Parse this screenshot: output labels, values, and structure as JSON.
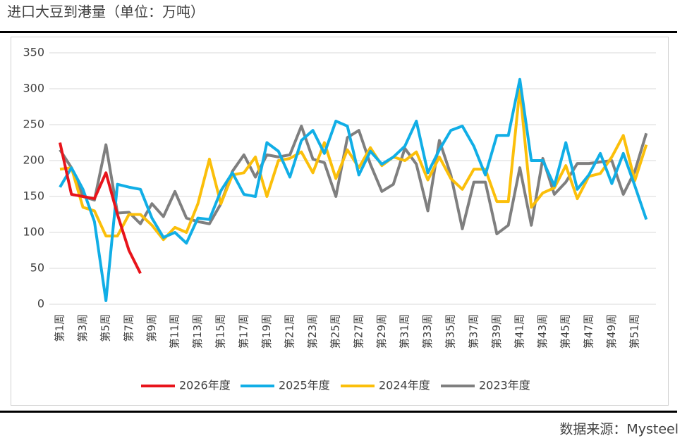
{
  "chart_data": {
    "type": "line",
    "title": "进口大豆到港量（单位：万吨）",
    "source": "数据来源：Mysteel",
    "categories": [
      "第1周",
      null,
      "第3周",
      null,
      "第5周",
      null,
      "第7周",
      null,
      "第9周",
      null,
      "第11周",
      null,
      "第13周",
      null,
      "第15周",
      null,
      "第17周",
      null,
      "第19周",
      null,
      "第21周",
      null,
      "第23周",
      null,
      "第25周",
      null,
      "第27周",
      null,
      "第29周",
      null,
      "第31周",
      null,
      "第33周",
      null,
      "第35周",
      null,
      "第37周",
      null,
      "第39周",
      null,
      "第41周",
      null,
      "第43周",
      null,
      "第45周",
      null,
      "第47周",
      null,
      "第49周",
      null,
      "第51周",
      null
    ],
    "ylim": [
      0,
      350
    ],
    "yticks": [
      0,
      50,
      100,
      150,
      200,
      250,
      300,
      350
    ],
    "grid": true,
    "legend": "bottom",
    "series": [
      {
        "name": "2026年度",
        "color": "#e8141b",
        "values": [
          225,
          153,
          150,
          147,
          183,
          125,
          75,
          43,
          null,
          null,
          null,
          null,
          null,
          null,
          null,
          null,
          null,
          null,
          null,
          null,
          null,
          null,
          null,
          null,
          null,
          null,
          null,
          null,
          null,
          null,
          null,
          null,
          null,
          null,
          null,
          null,
          null,
          null,
          null,
          null,
          null,
          null,
          null,
          null,
          null,
          null,
          null,
          null,
          null,
          null,
          null,
          null
        ]
      },
      {
        "name": "2025年度",
        "color": "#11aee6",
        "values": [
          163,
          190,
          160,
          115,
          5,
          167,
          163,
          160,
          120,
          93,
          100,
          85,
          120,
          118,
          158,
          183,
          153,
          150,
          225,
          213,
          177,
          228,
          242,
          210,
          255,
          248,
          180,
          213,
          195,
          205,
          220,
          255,
          183,
          215,
          242,
          248,
          220,
          180,
          235,
          235,
          313,
          200,
          200,
          165,
          225,
          160,
          180,
          210,
          168,
          210,
          165,
          118
        ]
      },
      {
        "name": "2024年度",
        "color": "#fbbf0a",
        "values": [
          188,
          190,
          135,
          130,
          95,
          95,
          125,
          125,
          110,
          90,
          107,
          100,
          140,
          202,
          140,
          180,
          183,
          205,
          150,
          200,
          203,
          212,
          183,
          225,
          175,
          215,
          190,
          218,
          193,
          205,
          200,
          212,
          173,
          205,
          175,
          160,
          188,
          188,
          143,
          143,
          300,
          135,
          155,
          162,
          193,
          147,
          178,
          182,
          205,
          235,
          172,
          222
        ]
      },
      {
        "name": "2023年度",
        "color": "#7f7f7f",
        "values": [
          215,
          190,
          150,
          145,
          222,
          127,
          128,
          112,
          140,
          122,
          157,
          120,
          115,
          112,
          140,
          185,
          208,
          177,
          208,
          205,
          208,
          248,
          202,
          197,
          150,
          232,
          242,
          195,
          157,
          167,
          217,
          195,
          130,
          228,
          180,
          105,
          170,
          170,
          98,
          110,
          190,
          110,
          203,
          153,
          170,
          196,
          196,
          198,
          200,
          153,
          185,
          238
        ]
      }
    ]
  }
}
